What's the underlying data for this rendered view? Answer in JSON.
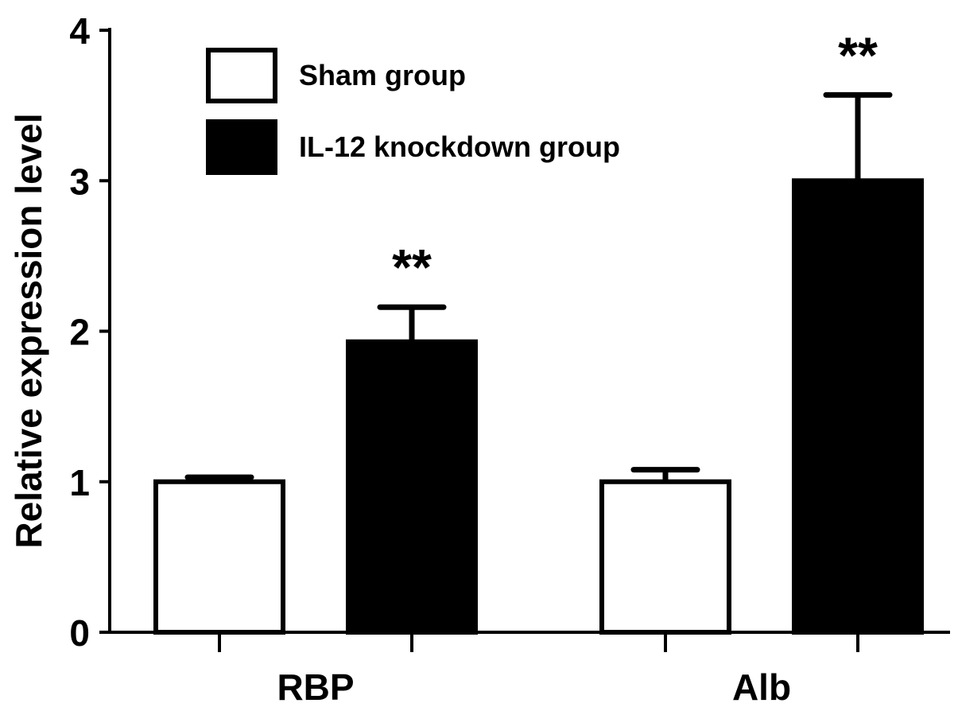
{
  "chart_data": {
    "type": "bar",
    "title": "",
    "xlabel": "",
    "ylabel": "Relative expression level",
    "ylim": [
      0,
      4
    ],
    "yticks": [
      "0",
      "1",
      "2",
      "3",
      "4"
    ],
    "categories": [
      "RBP",
      "Alb"
    ],
    "grid": false,
    "legend_position": "top-left",
    "series": [
      {
        "name": "Sham group",
        "fill": "#ffffff",
        "values": [
          1.0,
          1.0
        ],
        "errors": [
          0.03,
          0.08
        ],
        "significance": [
          "",
          ""
        ]
      },
      {
        "name": "IL-12 knockdown group",
        "fill": "#000000",
        "values": [
          1.93,
          3.0
        ],
        "errors": [
          0.23,
          0.57
        ],
        "significance": [
          "**",
          "**"
        ]
      }
    ]
  }
}
